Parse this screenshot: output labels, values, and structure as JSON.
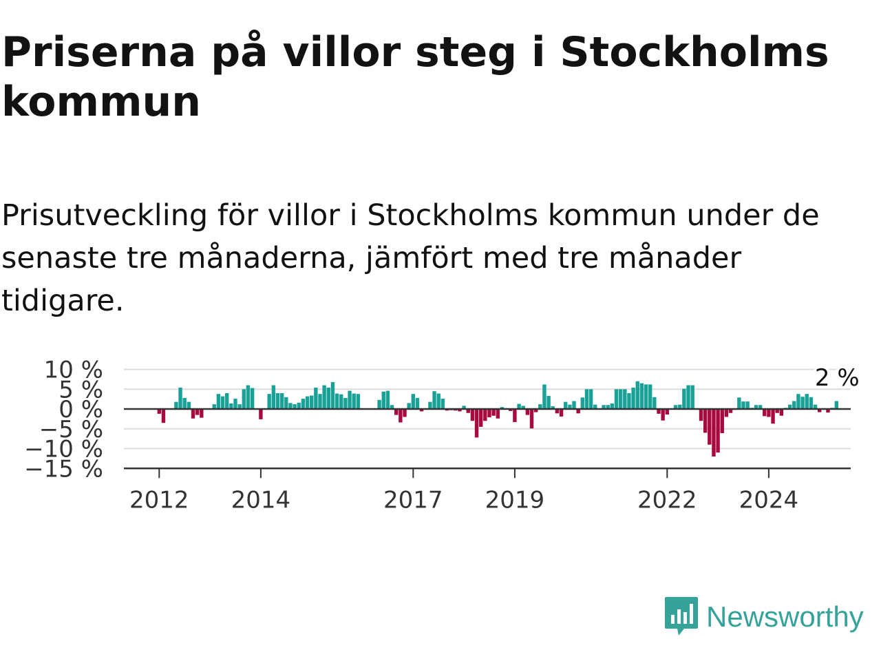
{
  "title": "Priserna på villor steg i Stockholms kommun",
  "subtitle": "Prisutveckling för villor i Stockholms kommun under de senaste tre månaderna, jämfört med tre månader tidigare.",
  "logo": {
    "text": "Newsworthy",
    "icon": "newsworthy-logo-icon",
    "color": "#36a39a"
  },
  "colors": {
    "positive": "#1aa197",
    "negative": "#a8093e",
    "grid": "#dcdcdc",
    "axis": "#333333"
  },
  "chart_data": {
    "type": "bar",
    "start": "2011-01",
    "frequency": "monthly",
    "ylim": [
      -15,
      10
    ],
    "yticks": [
      10,
      5,
      0,
      -5,
      -10,
      -15
    ],
    "ytick_labels": [
      "10 %",
      "5 %",
      "0 %",
      "−5 %",
      "−10 %",
      "−15 %"
    ],
    "xticks": [
      "2012",
      "2014",
      "2017",
      "2019",
      "2022",
      "2024"
    ],
    "annotation": {
      "label": "2 %",
      "value": 2
    },
    "grid": true,
    "values": [
      0,
      0,
      0,
      0,
      0,
      0,
      0,
      0,
      0,
      0,
      0,
      0,
      -1.2,
      -3.5,
      0,
      0,
      1.8,
      5.4,
      2.8,
      1.8,
      -2.4,
      -1.5,
      -2.2,
      0,
      0,
      1.2,
      3.8,
      3.2,
      4,
      1.4,
      2.6,
      1.2,
      5,
      6,
      5.3,
      0,
      -2.6,
      0,
      3.8,
      6,
      4,
      4,
      3,
      1.5,
      1.2,
      1.6,
      2.6,
      3.2,
      3.4,
      5.4,
      3.8,
      6,
      5.4,
      6.8,
      3.9,
      3.7,
      2.8,
      4.6,
      3.9,
      3.8,
      0,
      0,
      0,
      0,
      2.3,
      4.4,
      4.6,
      1,
      -1.5,
      -3.4,
      -2,
      1.5,
      3.8,
      2.8,
      -0.6,
      0,
      1.8,
      4.5,
      3.9,
      2.6,
      -0.4,
      -0.3,
      -0.4,
      -0.6,
      0.8,
      -1,
      -3,
      -7.2,
      -4.5,
      -3,
      -2.1,
      -1.7,
      -2.4,
      0.5,
      0.2,
      -0.5,
      -3.3,
      1.3,
      0.8,
      -1.5,
      -4.9,
      -0.8,
      1.2,
      6.2,
      3.3,
      0.7,
      -1.1,
      -1.9,
      1.8,
      1.1,
      2,
      -1.1,
      2.9,
      5,
      5,
      1.1,
      0.2,
      1,
      1,
      1.4,
      5,
      5,
      5,
      4,
      5.4,
      7,
      6.5,
      6.2,
      6.2,
      3,
      -1.2,
      -2.9,
      -1.4,
      0.1,
      1,
      1.1,
      5.1,
      6,
      6,
      0.2,
      -3,
      -6,
      -9,
      -12,
      -11,
      -6.1,
      -2,
      -1,
      -0.2,
      2.9,
      1.9,
      1.9,
      0.3,
      1,
      1,
      -1.8,
      -2,
      -3.7,
      -1,
      -1.7,
      0.3,
      1.1,
      2,
      3.8,
      3.1,
      3.8,
      3,
      1.1,
      -0.8,
      0.2,
      -0.9,
      0.3,
      2
    ]
  }
}
